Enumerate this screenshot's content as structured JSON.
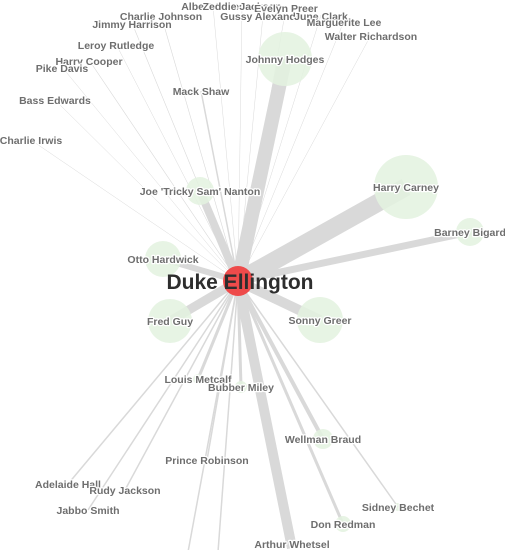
{
  "center": {
    "name": "Duke Ellington",
    "color": "#ee4b4b"
  },
  "colors": {
    "edge": "#d9d9d9",
    "node_fill": "#e3f2df",
    "label": "#6e6e6e"
  },
  "nodes": [
    {
      "name": "Albert Jones",
      "w": 0.5,
      "r": 0
    },
    {
      "name": "Zeddie Jackson",
      "w": 0.5,
      "r": 0
    },
    {
      "name": "Evelyn Preer",
      "w": 0.5,
      "r": 0
    },
    {
      "name": "Charlie Johnson",
      "w": 0.6,
      "r": 0
    },
    {
      "name": "Gussy Alexander",
      "w": 0.5,
      "r": 0
    },
    {
      "name": "June Clark",
      "w": 0.5,
      "r": 0
    },
    {
      "name": "Jimmy Harrison",
      "w": 0.6,
      "r": 0
    },
    {
      "name": "Marguerite Lee",
      "w": 0.5,
      "r": 0
    },
    {
      "name": "Walter Richardson",
      "w": 0.5,
      "r": 0
    },
    {
      "name": "Leroy Rutledge",
      "w": 0.5,
      "r": 0
    },
    {
      "name": "Johnny Hodges",
      "w": 14,
      "r": 27
    },
    {
      "name": "Harry Cooper",
      "w": 0.6,
      "r": 0
    },
    {
      "name": "Pike Davis",
      "w": 0.5,
      "r": 0
    },
    {
      "name": "Mack Shaw",
      "w": 1.5,
      "r": 0
    },
    {
      "name": "Bass Edwards",
      "w": 0.5,
      "r": 0
    },
    {
      "name": "Charlie Irwis",
      "w": 0.5,
      "r": 0
    },
    {
      "name": "Harry Carney",
      "w": 18,
      "r": 32
    },
    {
      "name": "Joe 'Tricky Sam' Nanton",
      "w": 8,
      "r": 14
    },
    {
      "name": "Barney Bigard",
      "w": 7,
      "r": 14
    },
    {
      "name": "Otto Hardwick",
      "w": 6,
      "r": 18
    },
    {
      "name": "Fred Guy",
      "w": 9,
      "r": 22
    },
    {
      "name": "Sonny Greer",
      "w": 10,
      "r": 23
    },
    {
      "name": "Louis Metcalf",
      "w": 3,
      "r": 5
    },
    {
      "name": "Bubber Miley",
      "w": 3,
      "r": 6
    },
    {
      "name": "Wellman Braud",
      "w": 4,
      "r": 10
    },
    {
      "name": "Prince Robinson",
      "w": 1.5,
      "r": 0
    },
    {
      "name": "Adelaide Hall",
      "w": 1.5,
      "r": 0
    },
    {
      "name": "Rudy Jackson",
      "w": 1.5,
      "r": 0
    },
    {
      "name": "Sidney Bechet",
      "w": 1.5,
      "r": 4
    },
    {
      "name": "Jabbo Smith",
      "w": 1.5,
      "r": 0
    },
    {
      "name": "Don Redman",
      "w": 3,
      "r": 8
    },
    {
      "name": "Arthur Whetsel",
      "w": 10,
      "r": 0
    },
    {
      "name": "",
      "w": 1.5,
      "r": 0
    },
    {
      "name": "",
      "w": 1.5,
      "r": 0
    }
  ]
}
